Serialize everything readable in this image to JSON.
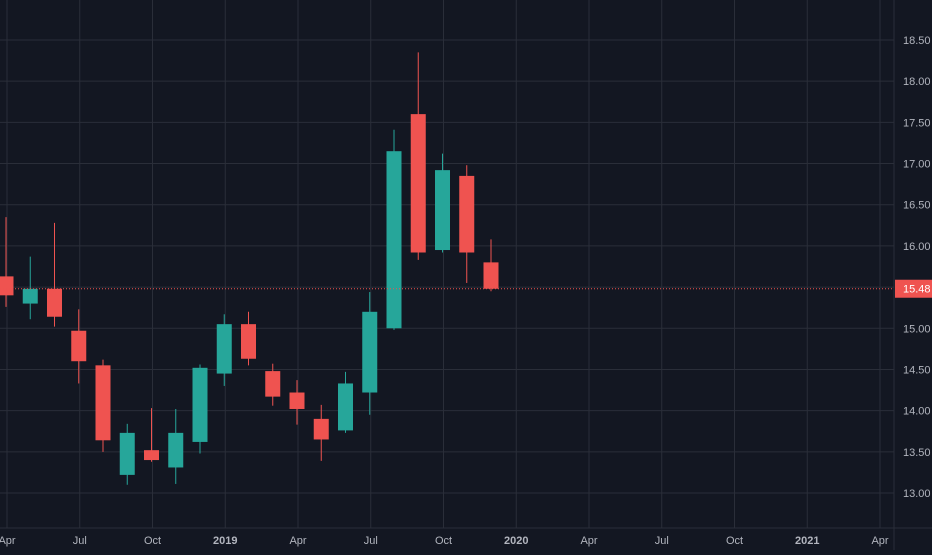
{
  "chart_data": {
    "type": "candlestick",
    "interval": "monthly",
    "colors": {
      "background": "#131722",
      "grid": "#2a2e39",
      "up": "#26a69a",
      "down": "#ef5350",
      "axis_text": "#b2b5be",
      "price_line": "#ef5350",
      "price_label_bg": "#ef5350",
      "price_label_text": "#ffffff"
    },
    "ylim": [
      12.6,
      18.9
    ],
    "y_ticks": [
      "18.50",
      "18.00",
      "17.50",
      "17.00",
      "16.50",
      "16.00",
      "15.50",
      "15.00",
      "14.50",
      "14.00",
      "13.50",
      "13.00"
    ],
    "x_ticks": [
      "Apr",
      "Jul",
      "Oct",
      "2019",
      "Apr",
      "Jul",
      "Oct",
      "2020",
      "Apr",
      "Jul",
      "Oct",
      "2021",
      "Apr"
    ],
    "last_price": "15.48",
    "candles": [
      {
        "open": 15.63,
        "high": 16.35,
        "low": 15.26,
        "close": 15.4
      },
      {
        "open": 15.3,
        "high": 15.87,
        "low": 15.11,
        "close": 15.48
      },
      {
        "open": 15.48,
        "high": 16.28,
        "low": 15.02,
        "close": 15.14
      },
      {
        "open": 14.97,
        "high": 15.23,
        "low": 14.33,
        "close": 14.6
      },
      {
        "open": 14.55,
        "high": 14.62,
        "low": 13.5,
        "close": 13.64
      },
      {
        "open": 13.22,
        "high": 13.84,
        "low": 13.1,
        "close": 13.73
      },
      {
        "open": 13.52,
        "high": 14.03,
        "low": 13.38,
        "close": 13.4
      },
      {
        "open": 13.31,
        "high": 14.02,
        "low": 13.11,
        "close": 13.73
      },
      {
        "open": 13.62,
        "high": 14.56,
        "low": 13.48,
        "close": 14.52
      },
      {
        "open": 14.45,
        "high": 15.17,
        "low": 14.3,
        "close": 15.05
      },
      {
        "open": 15.05,
        "high": 15.2,
        "low": 14.55,
        "close": 14.63
      },
      {
        "open": 14.48,
        "high": 14.57,
        "low": 14.06,
        "close": 14.17
      },
      {
        "open": 14.22,
        "high": 14.37,
        "low": 13.83,
        "close": 14.02
      },
      {
        "open": 13.9,
        "high": 14.07,
        "low": 13.39,
        "close": 13.65
      },
      {
        "open": 13.76,
        "high": 14.47,
        "low": 13.73,
        "close": 14.33
      },
      {
        "open": 14.22,
        "high": 15.44,
        "low": 13.95,
        "close": 15.2
      },
      {
        "open": 15.0,
        "high": 17.41,
        "low": 14.98,
        "close": 17.15
      },
      {
        "open": 17.6,
        "high": 18.35,
        "low": 15.83,
        "close": 15.92
      },
      {
        "open": 15.95,
        "high": 17.12,
        "low": 15.92,
        "close": 16.92
      },
      {
        "open": 16.85,
        "high": 16.98,
        "low": 15.55,
        "close": 15.92
      },
      {
        "open": 15.8,
        "high": 16.08,
        "low": 15.45,
        "close": 15.48
      }
    ]
  }
}
